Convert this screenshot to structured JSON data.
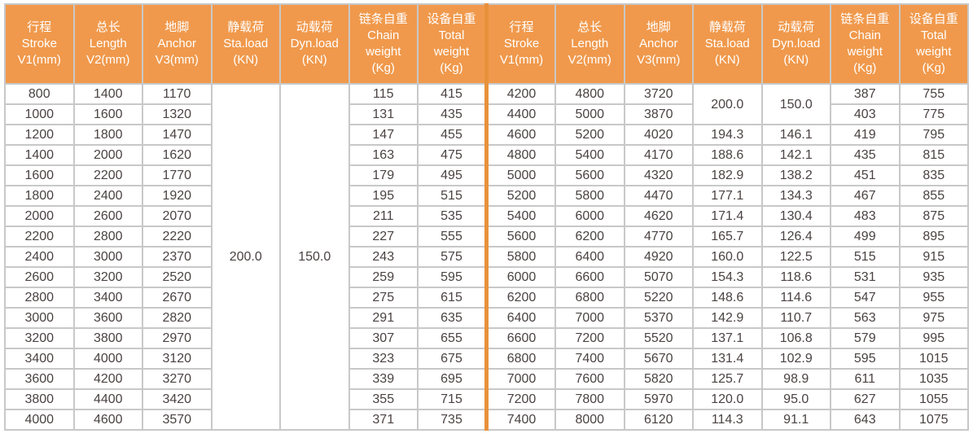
{
  "table": {
    "column_keys": [
      "stroke",
      "length",
      "anchor",
      "sta-load",
      "dyn-load",
      "chain-weight",
      "total-weight"
    ],
    "columns": [
      [
        "行程",
        "Stroke",
        "V1(mm)"
      ],
      [
        "总长",
        "Length",
        "V2(mm)"
      ],
      [
        "地脚",
        "Anchor",
        "V3(mm)"
      ],
      [
        "静载荷",
        "Sta.load",
        "(KN)"
      ],
      [
        "动载荷",
        "Dyn.load",
        "(KN)"
      ],
      [
        "链条自重",
        "Chain",
        "weight",
        "(Kg)"
      ],
      [
        "设备自重",
        "Total",
        "weight",
        "(Kg)"
      ]
    ],
    "left_merged": {
      "sta": "200.0",
      "dyn": "150.0",
      "rowspan": 17
    },
    "right_merged": {
      "sta": "200.0",
      "dyn": "150.0",
      "rowspan": 2
    },
    "left_rows": [
      [
        800,
        1400,
        1170,
        115,
        415
      ],
      [
        1000,
        1600,
        1320,
        131,
        435
      ],
      [
        1200,
        1800,
        1470,
        147,
        455
      ],
      [
        1400,
        2000,
        1620,
        163,
        475
      ],
      [
        1600,
        2200,
        1770,
        179,
        495
      ],
      [
        1800,
        2400,
        1920,
        195,
        515
      ],
      [
        2000,
        2600,
        2070,
        211,
        535
      ],
      [
        2200,
        2800,
        2220,
        227,
        555
      ],
      [
        2400,
        3000,
        2370,
        243,
        575
      ],
      [
        2600,
        3200,
        2520,
        259,
        595
      ],
      [
        2800,
        3400,
        2670,
        275,
        615
      ],
      [
        3000,
        3600,
        2820,
        291,
        635
      ],
      [
        3200,
        3800,
        2970,
        307,
        655
      ],
      [
        3400,
        4000,
        3120,
        323,
        675
      ],
      [
        3600,
        4200,
        3270,
        339,
        695
      ],
      [
        3800,
        4400,
        3420,
        355,
        715
      ],
      [
        4000,
        4600,
        3570,
        371,
        735
      ]
    ],
    "right_rows": [
      [
        4200,
        4800,
        3720,
        null,
        null,
        387,
        755
      ],
      [
        4400,
        5000,
        3870,
        null,
        null,
        403,
        775
      ],
      [
        4600,
        5200,
        4020,
        "194.3",
        "146.1",
        419,
        795
      ],
      [
        4800,
        5400,
        4170,
        "188.6",
        "142.1",
        435,
        815
      ],
      [
        5000,
        5600,
        4320,
        "182.9",
        "138.2",
        451,
        835
      ],
      [
        5200,
        5800,
        4470,
        "177.1",
        "134.3",
        467,
        855
      ],
      [
        5400,
        6000,
        4620,
        "171.4",
        "130.4",
        483,
        875
      ],
      [
        5600,
        6200,
        4770,
        "165.7",
        "126.4",
        499,
        895
      ],
      [
        5800,
        6400,
        4920,
        "160.0",
        "122.5",
        515,
        915
      ],
      [
        6000,
        6600,
        5070,
        "154.3",
        "118.6",
        531,
        935
      ],
      [
        6200,
        6800,
        5220,
        "148.6",
        "114.6",
        547,
        955
      ],
      [
        6400,
        7000,
        5370,
        "142.9",
        "110.7",
        563,
        975
      ],
      [
        6600,
        7200,
        5520,
        "137.1",
        "106.8",
        579,
        995
      ],
      [
        6800,
        7400,
        5670,
        "131.4",
        "102.9",
        595,
        1015
      ],
      [
        7000,
        7600,
        5820,
        "125.7",
        "98.9",
        611,
        1035
      ],
      [
        7200,
        7800,
        5970,
        "120.0",
        "95.0",
        627,
        1055
      ],
      [
        7400,
        8000,
        6120,
        "114.3",
        "91.1",
        643,
        1075
      ]
    ],
    "colors": {
      "header_bg": "#f0994c",
      "header_text": "#ffffff",
      "divider": "#e8913b",
      "grid": "#c8c8c8",
      "text": "#4b4242",
      "cell_bg": "#ffffff"
    }
  }
}
